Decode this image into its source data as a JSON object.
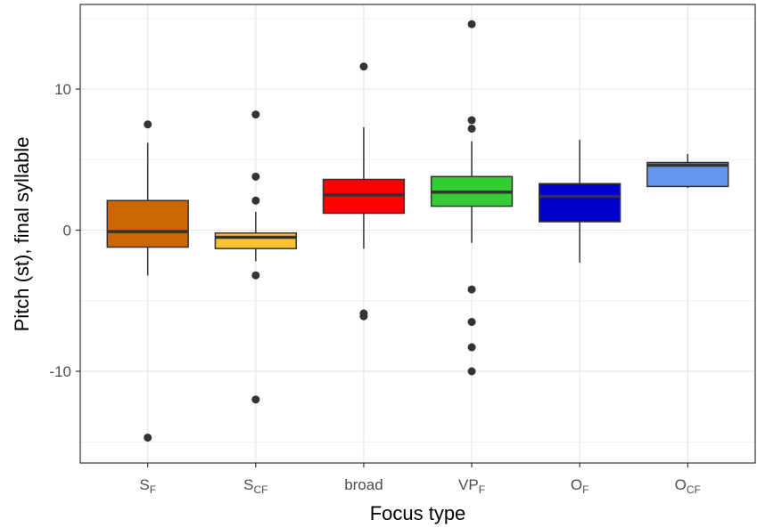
{
  "chart_data": {
    "type": "boxplot",
    "xlabel": "Focus type",
    "ylabel": "Pitch (st), final syllable",
    "ylim": [
      -16.5,
      16
    ],
    "yticks": [
      -10,
      0,
      10
    ],
    "grid": true,
    "categories": [
      {
        "main": "S",
        "sub": "F"
      },
      {
        "main": "S",
        "sub": "CF"
      },
      {
        "main": "broad",
        "sub": ""
      },
      {
        "main": "VP",
        "sub": "F"
      },
      {
        "main": "O",
        "sub": "F"
      },
      {
        "main": "O",
        "sub": "CF"
      }
    ],
    "boxes": [
      {
        "q1": -1.2,
        "median": -0.1,
        "q3": 2.1,
        "whisker_low": -3.2,
        "whisker_high": 6.2,
        "outliers": [
          7.5,
          -14.7
        ],
        "color": "#cc6600"
      },
      {
        "q1": -1.3,
        "median": -0.5,
        "q3": -0.2,
        "whisker_low": -2.2,
        "whisker_high": 1.3,
        "outliers": [
          8.2,
          3.8,
          2.1,
          -3.2,
          -12.0
        ],
        "color": "#fcc232"
      },
      {
        "q1": 1.2,
        "median": 2.5,
        "q3": 3.6,
        "whisker_low": -1.3,
        "whisker_high": 7.3,
        "outliers": [
          11.6,
          -5.9,
          -6.1
        ],
        "color": "#ff0000"
      },
      {
        "q1": 1.7,
        "median": 2.7,
        "q3": 3.8,
        "whisker_low": -0.9,
        "whisker_high": 6.3,
        "outliers": [
          14.6,
          7.8,
          7.2,
          -4.2,
          -6.5,
          -8.3,
          -10.0
        ],
        "color": "#33cc33"
      },
      {
        "q1": 0.6,
        "median": 2.4,
        "q3": 3.3,
        "whisker_low": -2.3,
        "whisker_high": 6.4,
        "outliers": [],
        "color": "#0000cc"
      },
      {
        "q1": 3.1,
        "median": 4.6,
        "q3": 4.8,
        "whisker_low": 3.0,
        "whisker_high": 5.4,
        "outliers": [],
        "color": "#6495ed"
      }
    ]
  }
}
